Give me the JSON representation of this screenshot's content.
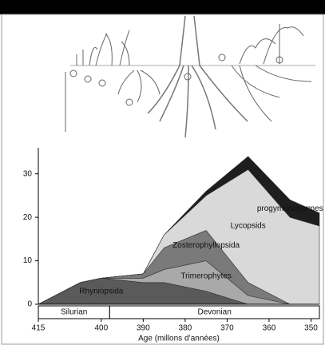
{
  "chart_data": {
    "type": "stacked-area",
    "x": [
      415,
      405,
      400,
      390,
      385,
      375,
      365,
      355,
      348
    ],
    "series": [
      {
        "name": "Rhyniopsida",
        "color": "#5a5a5a",
        "values": [
          0,
          5,
          6,
          5,
          5,
          3,
          0,
          0,
          0
        ]
      },
      {
        "name": "Trimerophytes",
        "color": "#a9a9a9",
        "values": [
          0,
          0,
          0,
          1,
          3,
          7,
          2,
          0,
          0
        ]
      },
      {
        "name": "Zosterophyllopsida",
        "color": "#7a7a7a",
        "values": [
          0,
          0,
          0,
          1,
          5,
          7,
          3,
          0,
          0
        ]
      },
      {
        "name": "Lycopsids",
        "color": "#d9d9d9",
        "values": [
          0,
          0,
          0,
          0,
          3,
          8,
          26,
          20,
          18
        ]
      },
      {
        "name": "progymnospermes",
        "color": "#1e1e1e",
        "values": [
          0,
          0,
          0,
          0,
          0,
          1,
          3,
          4,
          3
        ]
      }
    ],
    "xlim": [
      415,
      348
    ],
    "xticks": [
      415,
      400,
      390,
      380,
      370,
      360,
      350
    ],
    "ylim": [
      0,
      36
    ],
    "yticks": [
      0,
      10,
      20,
      30
    ],
    "xlabel": "Age (millons d’années)",
    "periods": [
      {
        "name": "Silurian",
        "start": 415,
        "end": 398
      },
      {
        "name": "Devonian",
        "start": 398,
        "end": 348
      }
    ]
  }
}
